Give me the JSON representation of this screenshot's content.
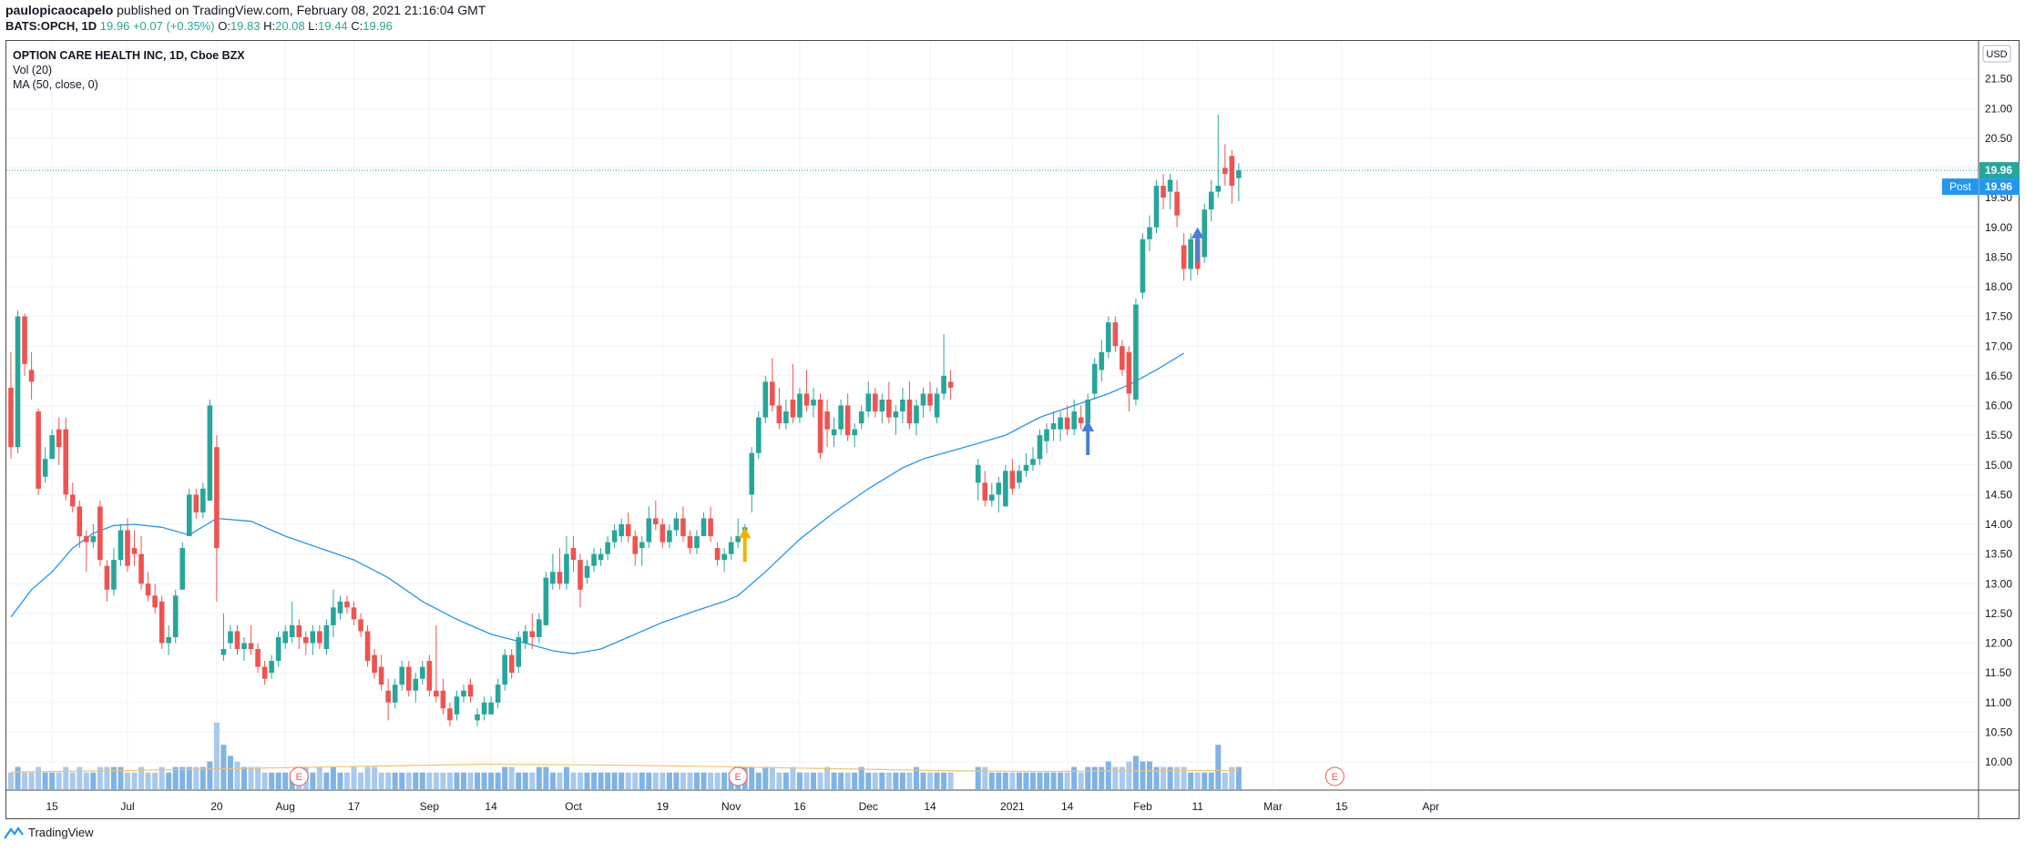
{
  "header": {
    "author": "paulopicaocapelo",
    "published": "published on TradingView.com, February 08, 2021 21:16:04 GMT",
    "ticker_line": "BATS:OPCH, 1D",
    "last": "19.96",
    "change": "+0.07 (+0.35%)",
    "open_label": "O:",
    "open": "19.83",
    "high_label": "H:",
    "high": "20.08",
    "low_label": "L:",
    "low": "19.44",
    "close_label": "C:",
    "close": "19.96"
  },
  "legend": {
    "title": "OPTION CARE HEALTH INC, 1D, Cboe BZX",
    "vol": "Vol (20)",
    "ma": "MA (50, close, 0)"
  },
  "footer": {
    "brand": "TradingView"
  },
  "colors": {
    "up": "#26a69a",
    "down": "#ef5350",
    "ma": "#2196f3",
    "vol_up": "#7fb3e6",
    "vol_down": "#a8c9ee",
    "vol_ma": "#f5c26b",
    "grid": "#f0f3fa",
    "price_tag": "#26a69a",
    "post_tag": "#2196f3",
    "arrow_blue": "#4a7fd4",
    "arrow_yellow": "#f0b400",
    "earnings": "#ef5350"
  },
  "chart_data": {
    "type": "candlestick",
    "currency": "USD",
    "ylim": [
      9.5,
      21.8
    ],
    "y_ticks": [
      10.0,
      10.5,
      11.0,
      11.5,
      12.0,
      12.5,
      13.0,
      13.5,
      14.0,
      14.5,
      15.0,
      15.5,
      16.0,
      16.5,
      17.0,
      17.5,
      18.0,
      18.5,
      19.0,
      19.5,
      20.0,
      20.5,
      21.0,
      21.5
    ],
    "x_labels": [
      {
        "label": "15",
        "i": 6
      },
      {
        "label": "Jul",
        "i": 17
      },
      {
        "label": "20",
        "i": 30
      },
      {
        "label": "Aug",
        "i": 40
      },
      {
        "label": "17",
        "i": 50
      },
      {
        "label": "Sep",
        "i": 61
      },
      {
        "label": "14",
        "i": 70
      },
      {
        "label": "Oct",
        "i": 82
      },
      {
        "label": "19",
        "i": 95
      },
      {
        "label": "Nov",
        "i": 105
      },
      {
        "label": "16",
        "i": 115
      },
      {
        "label": "Dec",
        "i": 125
      },
      {
        "label": "14",
        "i": 134
      },
      {
        "label": "2021",
        "i": 146
      },
      {
        "label": "14",
        "i": 154
      },
      {
        "label": "Feb",
        "i": 165
      },
      {
        "label": "11",
        "i": 173
      },
      {
        "label": "Mar",
        "i": 184
      },
      {
        "label": "15",
        "i": 194
      },
      {
        "label": "Apr",
        "i": 207
      }
    ],
    "candles": [
      [
        16.3,
        16.9,
        15.1,
        15.3,
        3
      ],
      [
        15.3,
        17.6,
        15.2,
        17.5,
        4
      ],
      [
        17.5,
        17.55,
        16.5,
        16.7,
        3
      ],
      [
        16.6,
        16.9,
        16.1,
        16.4,
        3
      ],
      [
        15.9,
        15.95,
        14.5,
        14.6,
        4
      ],
      [
        14.8,
        15.3,
        14.7,
        15.1,
        3
      ],
      [
        15.1,
        15.6,
        15.1,
        15.5,
        3
      ],
      [
        15.6,
        15.8,
        15.0,
        15.3,
        3
      ],
      [
        15.6,
        15.8,
        14.4,
        14.5,
        4
      ],
      [
        14.5,
        14.7,
        14.2,
        14.3,
        3
      ],
      [
        14.3,
        14.4,
        13.6,
        13.8,
        4
      ],
      [
        13.8,
        13.9,
        13.2,
        13.7,
        3
      ],
      [
        13.7,
        14.0,
        13.6,
        13.8,
        3
      ],
      [
        14.3,
        14.4,
        13.3,
        13.4,
        4
      ],
      [
        13.3,
        13.4,
        12.7,
        12.9,
        4
      ],
      [
        12.9,
        13.6,
        12.8,
        13.4,
        4
      ],
      [
        13.4,
        14.0,
        13.3,
        13.9,
        4
      ],
      [
        13.9,
        14.1,
        13.2,
        13.3,
        3
      ],
      [
        13.6,
        13.9,
        13.3,
        13.5,
        3
      ],
      [
        13.5,
        13.8,
        12.9,
        13.0,
        4
      ],
      [
        13.0,
        13.2,
        12.7,
        12.8,
        3
      ],
      [
        12.8,
        13.0,
        12.5,
        12.6,
        3
      ],
      [
        12.7,
        12.8,
        11.9,
        12.0,
        4
      ],
      [
        12.0,
        12.3,
        11.8,
        12.1,
        3
      ],
      [
        12.1,
        12.9,
        12.0,
        12.8,
        4
      ],
      [
        12.9,
        13.7,
        12.9,
        13.6,
        4
      ],
      [
        13.8,
        14.6,
        13.8,
        14.5,
        4
      ],
      [
        14.5,
        14.6,
        14.1,
        14.2,
        4
      ],
      [
        14.2,
        14.7,
        14.1,
        14.6,
        4
      ],
      [
        14.4,
        16.1,
        14.4,
        16.0,
        5
      ],
      [
        15.3,
        15.5,
        12.7,
        13.6,
        12
      ],
      [
        11.8,
        12.5,
        11.7,
        11.9,
        8
      ],
      [
        12.0,
        12.3,
        11.9,
        12.2,
        6
      ],
      [
        12.2,
        12.3,
        11.8,
        11.9,
        5
      ],
      [
        11.9,
        12.1,
        11.7,
        12.0,
        4
      ],
      [
        12.0,
        12.3,
        11.8,
        11.9,
        4
      ],
      [
        11.9,
        12.0,
        11.5,
        11.6,
        4
      ],
      [
        11.6,
        11.7,
        11.3,
        11.4,
        3
      ],
      [
        11.5,
        11.8,
        11.4,
        11.7,
        3
      ],
      [
        11.7,
        12.2,
        11.6,
        12.1,
        3
      ],
      [
        12.0,
        12.3,
        11.9,
        12.2,
        3
      ],
      [
        12.1,
        12.7,
        12.0,
        12.3,
        3
      ],
      [
        12.3,
        12.4,
        11.9,
        12.1,
        3
      ],
      [
        12.1,
        12.2,
        11.8,
        12.0,
        4
      ],
      [
        12.0,
        12.3,
        11.8,
        12.2,
        3
      ],
      [
        12.2,
        12.3,
        11.9,
        12.0,
        4
      ],
      [
        11.9,
        12.4,
        11.8,
        12.3,
        3
      ],
      [
        12.3,
        12.9,
        12.1,
        12.6,
        4
      ],
      [
        12.5,
        12.8,
        12.4,
        12.7,
        3
      ],
      [
        12.7,
        12.8,
        12.5,
        12.6,
        3
      ],
      [
        12.6,
        12.7,
        12.3,
        12.4,
        4
      ],
      [
        12.4,
        12.5,
        12.1,
        12.2,
        3
      ],
      [
        12.2,
        12.3,
        11.6,
        11.7,
        4
      ],
      [
        11.8,
        11.9,
        11.4,
        11.5,
        4
      ],
      [
        11.6,
        11.8,
        11.2,
        11.3,
        3
      ],
      [
        11.2,
        11.4,
        10.7,
        11.0,
        3
      ],
      [
        11.0,
        11.4,
        10.9,
        11.3,
        3
      ],
      [
        11.3,
        11.7,
        11.2,
        11.6,
        3
      ],
      [
        11.6,
        11.7,
        11.1,
        11.2,
        3
      ],
      [
        11.2,
        11.5,
        11.0,
        11.4,
        3
      ],
      [
        11.4,
        11.7,
        11.3,
        11.6,
        3
      ],
      [
        11.7,
        11.8,
        11.1,
        11.2,
        3
      ],
      [
        11.2,
        12.3,
        11.0,
        11.1,
        3
      ],
      [
        11.2,
        11.4,
        10.8,
        10.9,
        3
      ],
      [
        10.9,
        11.0,
        10.6,
        10.7,
        3
      ],
      [
        10.8,
        11.2,
        10.7,
        11.1,
        3
      ],
      [
        11.1,
        11.3,
        11.0,
        11.2,
        3
      ],
      [
        11.3,
        11.4,
        11.0,
        11.1,
        3
      ],
      [
        10.7,
        10.9,
        10.6,
        10.8,
        3
      ],
      [
        10.8,
        11.1,
        10.7,
        11.0,
        3
      ],
      [
        10.8,
        11.1,
        10.8,
        11.0,
        3
      ],
      [
        11.0,
        11.4,
        10.9,
        11.3,
        3
      ],
      [
        11.3,
        11.9,
        11.2,
        11.8,
        4
      ],
      [
        11.8,
        11.9,
        11.4,
        11.5,
        4
      ],
      [
        11.6,
        12.2,
        11.5,
        12.1,
        3
      ],
      [
        12.0,
        12.3,
        11.9,
        12.2,
        3
      ],
      [
        12.2,
        12.5,
        11.9,
        12.1,
        3
      ],
      [
        12.1,
        12.5,
        12.0,
        12.4,
        4
      ],
      [
        12.3,
        13.2,
        12.3,
        13.1,
        4
      ],
      [
        13.0,
        13.5,
        12.9,
        13.2,
        3
      ],
      [
        13.2,
        13.6,
        12.9,
        13.0,
        3
      ],
      [
        13.0,
        13.8,
        12.9,
        13.5,
        4
      ],
      [
        13.6,
        13.8,
        13.2,
        13.4,
        3
      ],
      [
        13.4,
        13.5,
        12.6,
        12.9,
        3
      ],
      [
        13.1,
        13.4,
        13.0,
        13.3,
        3
      ],
      [
        13.3,
        13.6,
        13.2,
        13.5,
        3
      ],
      [
        13.4,
        13.6,
        13.3,
        13.5,
        3
      ],
      [
        13.5,
        13.8,
        13.4,
        13.7,
        3
      ],
      [
        13.7,
        14.0,
        13.6,
        13.9,
        3
      ],
      [
        13.8,
        14.1,
        13.7,
        14.0,
        3
      ],
      [
        14.0,
        14.2,
        13.7,
        13.8,
        3
      ],
      [
        13.8,
        13.9,
        13.3,
        13.5,
        3
      ],
      [
        13.6,
        13.8,
        13.3,
        13.7,
        3
      ],
      [
        13.7,
        14.3,
        13.6,
        14.1,
        3
      ],
      [
        14.1,
        14.4,
        13.9,
        14.0,
        3
      ],
      [
        14.0,
        14.1,
        13.6,
        13.7,
        3
      ],
      [
        13.7,
        14.0,
        13.6,
        13.9,
        3
      ],
      [
        13.9,
        14.2,
        13.8,
        14.1,
        3
      ],
      [
        14.1,
        14.3,
        13.7,
        13.8,
        3
      ],
      [
        13.8,
        13.9,
        13.5,
        13.6,
        3
      ],
      [
        13.6,
        13.9,
        13.5,
        13.8,
        3
      ],
      [
        13.8,
        14.2,
        13.8,
        14.1,
        3
      ],
      [
        14.1,
        14.3,
        13.7,
        13.8,
        3
      ],
      [
        13.6,
        13.7,
        13.3,
        13.4,
        3
      ],
      [
        13.4,
        13.6,
        13.2,
        13.5,
        3
      ],
      [
        13.5,
        13.8,
        13.4,
        13.7,
        3
      ],
      [
        13.7,
        14.1,
        13.6,
        13.8,
        3
      ],
      [
        13.9,
        14.0,
        13.8,
        13.95,
        4
      ],
      [
        14.5,
        15.3,
        14.2,
        15.2,
        4
      ],
      [
        15.2,
        15.9,
        15.1,
        15.8,
        3
      ],
      [
        15.8,
        16.5,
        15.7,
        16.4,
        4
      ],
      [
        16.4,
        16.8,
        15.9,
        16.0,
        4
      ],
      [
        16.0,
        16.3,
        15.6,
        15.7,
        3
      ],
      [
        15.7,
        16.1,
        15.6,
        15.9,
        3
      ],
      [
        16.1,
        16.7,
        15.7,
        15.8,
        4
      ],
      [
        15.8,
        16.3,
        15.7,
        16.2,
        3
      ],
      [
        16.2,
        16.6,
        15.9,
        16.0,
        3
      ],
      [
        16.0,
        16.3,
        15.8,
        16.1,
        3
      ],
      [
        16.1,
        16.2,
        15.1,
        15.2,
        3
      ],
      [
        15.9,
        16.1,
        15.3,
        15.6,
        4
      ],
      [
        15.5,
        15.8,
        15.3,
        15.6,
        3
      ],
      [
        15.6,
        16.1,
        15.5,
        16.0,
        3
      ],
      [
        16.0,
        16.2,
        15.4,
        15.5,
        3
      ],
      [
        15.5,
        15.7,
        15.3,
        15.6,
        3
      ],
      [
        15.7,
        16.0,
        15.6,
        15.9,
        4
      ],
      [
        15.9,
        16.4,
        15.8,
        16.2,
        3
      ],
      [
        16.2,
        16.3,
        15.8,
        15.9,
        3
      ],
      [
        15.9,
        16.2,
        15.7,
        16.1,
        3
      ],
      [
        16.1,
        16.4,
        15.7,
        15.8,
        3
      ],
      [
        15.8,
        16.0,
        15.5,
        15.9,
        3
      ],
      [
        15.9,
        16.3,
        15.7,
        16.1,
        3
      ],
      [
        16.1,
        16.4,
        15.6,
        15.7,
        3
      ],
      [
        15.7,
        16.1,
        15.5,
        16.0,
        4
      ],
      [
        16.0,
        16.3,
        15.8,
        16.2,
        3
      ],
      [
        16.2,
        16.4,
        15.9,
        16.0,
        3
      ],
      [
        15.8,
        16.3,
        15.7,
        16.2,
        3
      ],
      [
        16.2,
        17.2,
        16.1,
        16.5,
        3
      ],
      [
        16.4,
        16.6,
        16.1,
        16.3,
        3
      ],
      null,
      null,
      null,
      [
        14.7,
        15.1,
        14.4,
        15.0,
        4
      ],
      [
        14.7,
        14.9,
        14.3,
        14.4,
        4
      ],
      [
        14.4,
        14.7,
        14.3,
        14.5,
        3
      ],
      [
        14.5,
        14.8,
        14.2,
        14.7,
        3
      ],
      [
        14.3,
        15.0,
        14.3,
        14.9,
        3
      ],
      [
        14.9,
        15.1,
        14.5,
        14.6,
        3
      ],
      [
        14.7,
        15.0,
        14.6,
        14.9,
        3
      ],
      [
        14.9,
        15.2,
        14.8,
        15.0,
        3
      ],
      [
        15.0,
        15.3,
        14.9,
        15.1,
        3
      ],
      [
        15.1,
        15.6,
        15.0,
        15.5,
        3
      ],
      [
        15.4,
        15.7,
        15.2,
        15.6,
        3
      ],
      [
        15.6,
        15.9,
        15.4,
        15.7,
        3
      ],
      [
        15.6,
        15.9,
        15.4,
        15.8,
        3
      ],
      [
        15.8,
        16.0,
        15.5,
        15.6,
        3
      ],
      [
        15.6,
        16.1,
        15.5,
        15.9,
        4
      ],
      [
        15.8,
        16.0,
        15.6,
        15.7,
        3
      ],
      [
        15.7,
        16.2,
        15.6,
        16.1,
        4
      ],
      [
        16.2,
        16.8,
        16.1,
        16.7,
        4
      ],
      [
        16.6,
        17.1,
        16.4,
        16.9,
        4
      ],
      [
        16.9,
        17.5,
        16.8,
        17.4,
        5
      ],
      [
        17.4,
        17.5,
        16.9,
        17.0,
        4
      ],
      [
        17.0,
        17.1,
        16.5,
        16.6,
        4
      ],
      [
        16.9,
        17.0,
        15.9,
        16.2,
        5
      ],
      [
        16.1,
        17.8,
        16.0,
        17.7,
        6
      ],
      [
        17.9,
        18.9,
        17.8,
        18.8,
        5
      ],
      [
        18.8,
        19.2,
        18.6,
        19.0,
        5
      ],
      [
        19.0,
        19.8,
        18.9,
        19.7,
        4
      ],
      [
        19.7,
        19.9,
        19.3,
        19.5,
        4
      ],
      [
        19.6,
        19.9,
        19.3,
        19.8,
        4
      ],
      [
        19.6,
        19.8,
        19.0,
        19.2,
        4
      ],
      [
        18.7,
        18.9,
        18.1,
        18.3,
        4
      ],
      [
        18.3,
        18.9,
        18.1,
        18.8,
        3
      ],
      [
        18.8,
        18.9,
        18.2,
        18.3,
        3
      ],
      [
        18.5,
        19.4,
        18.4,
        19.3,
        3
      ],
      [
        19.3,
        19.8,
        19.1,
        19.6,
        3
      ],
      [
        19.6,
        20.9,
        19.5,
        19.7,
        8
      ],
      [
        20.0,
        20.4,
        19.7,
        19.9,
        3
      ],
      [
        20.2,
        20.3,
        19.4,
        19.7,
        4
      ],
      [
        19.83,
        20.08,
        19.44,
        19.96,
        4
      ]
    ],
    "ma50": [
      [
        0,
        12.44
      ],
      [
        3,
        12.9
      ],
      [
        6,
        13.2
      ],
      [
        9,
        13.6
      ],
      [
        12,
        13.85
      ],
      [
        15,
        13.98
      ],
      [
        18,
        14.0
      ],
      [
        22,
        13.95
      ],
      [
        26,
        13.82
      ],
      [
        30,
        14.1
      ],
      [
        35,
        14.05
      ],
      [
        40,
        13.8
      ],
      [
        45,
        13.6
      ],
      [
        50,
        13.4
      ],
      [
        55,
        13.1
      ],
      [
        60,
        12.7
      ],
      [
        65,
        12.4
      ],
      [
        70,
        12.15
      ],
      [
        75,
        12.0
      ],
      [
        79,
        11.87
      ],
      [
        82,
        11.82
      ],
      [
        86,
        11.9
      ],
      [
        90,
        12.1
      ],
      [
        95,
        12.35
      ],
      [
        100,
        12.55
      ],
      [
        104,
        12.7
      ],
      [
        106,
        12.8
      ],
      [
        110,
        13.2
      ],
      [
        115,
        13.75
      ],
      [
        120,
        14.2
      ],
      [
        125,
        14.6
      ],
      [
        130,
        14.95
      ],
      [
        133,
        15.1
      ],
      [
        136,
        15.2
      ],
      [
        140,
        15.33
      ],
      [
        145,
        15.5
      ],
      [
        150,
        15.8
      ],
      [
        155,
        16.0
      ],
      [
        160,
        16.2
      ],
      [
        163,
        16.35
      ],
      [
        167,
        16.6
      ],
      [
        171,
        16.88
      ]
    ],
    "vol_ma_levels": [
      3.1,
      3.3,
      3.6,
      3.9,
      4.2,
      4.5,
      4.4,
      4.2,
      3.9,
      3.6,
      3.3,
      3.2,
      3.3,
      3.4
    ],
    "earnings_markers": [
      42,
      106,
      193
    ],
    "arrows": [
      {
        "i": 107,
        "color": "yellow",
        "tip": 13.95
      },
      {
        "i": 157,
        "color": "blue",
        "tip": 15.75
      },
      {
        "i": 173,
        "color": "blue",
        "tip": 19.0
      }
    ],
    "last_price_label": "19.96",
    "post_label": "Post",
    "post_price_label": "19.96",
    "earnings_glyph": "E"
  }
}
